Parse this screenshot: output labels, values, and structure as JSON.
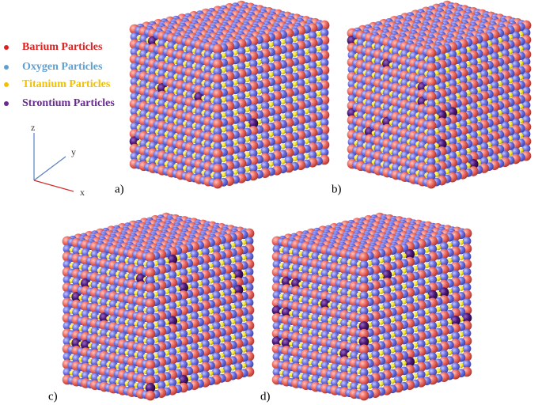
{
  "legend": [
    {
      "label": "Barium Particles",
      "color": "#e0201f"
    },
    {
      "label": "Oxygen Particles",
      "color": "#5fa0d0"
    },
    {
      "label": "Titanium Particles",
      "color": "#f2c200"
    },
    {
      "label": "Strontium Particles",
      "color": "#6a2a90"
    }
  ],
  "axes": {
    "z": "z",
    "y": "y",
    "x": "x"
  },
  "panels": [
    "a)",
    "b)",
    "c)",
    "d)"
  ]
}
